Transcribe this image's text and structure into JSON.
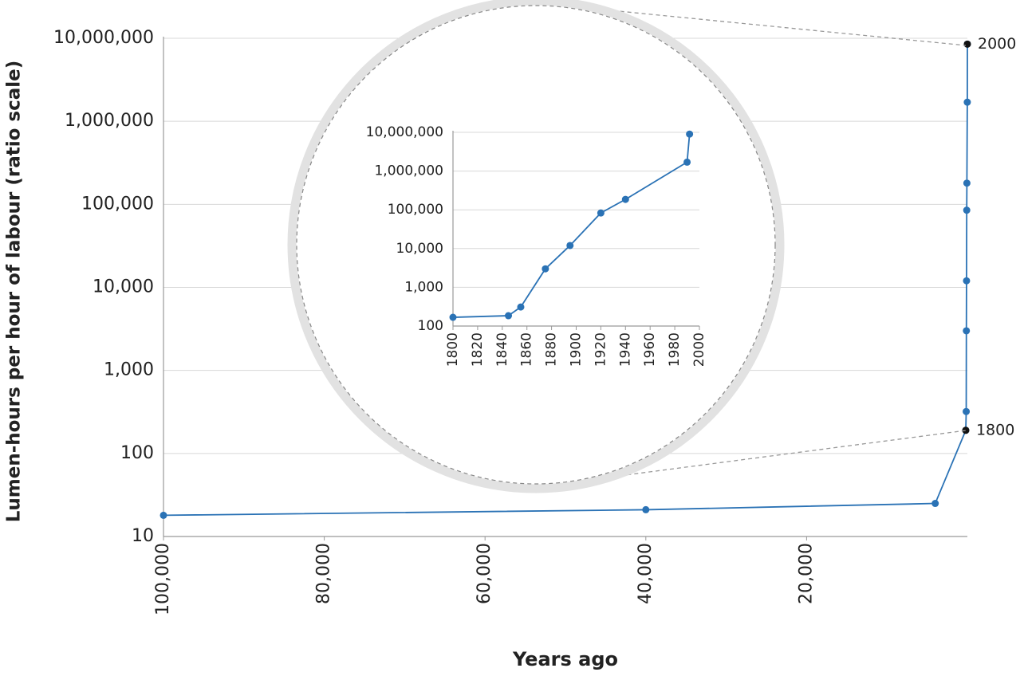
{
  "chart_data": [
    {
      "type": "line",
      "x_label": "Years ago",
      "y_label": "Lumen-hours per hour of labour (ratio scale)",
      "log_y": true,
      "grid": true,
      "xlim": [
        100000,
        0
      ],
      "xticks": [
        {
          "value": 100000,
          "label": "100,000"
        },
        {
          "value": 80000,
          "label": "80,000"
        },
        {
          "value": 60000,
          "label": "60,000"
        },
        {
          "value": 40000,
          "label": "40,000"
        },
        {
          "value": 20000,
          "label": "20,000"
        }
      ],
      "ylim": [
        10,
        10000000
      ],
      "yticks": [
        10,
        100,
        {
          "value": 1000,
          "label": "1,000"
        },
        {
          "value": 10000,
          "label": "10,000"
        },
        {
          "value": 100000,
          "label": "100,000"
        },
        {
          "value": 1000000,
          "label": "1,000,000"
        },
        {
          "value": 10000000,
          "label": "10,000,000"
        }
      ],
      "x": [
        100000,
        40000,
        4000,
        200,
        145,
        125,
        105,
        80,
        60,
        10,
        0
      ],
      "series": [
        {
          "name": "Lumen-hours",
          "color": "#2a72b5",
          "values": [
            18,
            21,
            25,
            190,
            320,
            3000,
            12000,
            85000,
            180000,
            1700000,
            8500000
          ]
        }
      ],
      "annotations": [
        {
          "text": "2000",
          "x": 0,
          "y": 8500000,
          "color": "#111111"
        },
        {
          "text": "1800",
          "x": 200,
          "y": 190,
          "color": "#111111"
        }
      ]
    },
    {
      "type": "line",
      "log_y": true,
      "grid": true,
      "xlim": [
        1800,
        2000
      ],
      "xticks": [
        1800,
        1820,
        1840,
        1860,
        1880,
        1900,
        1920,
        1940,
        1960,
        1980,
        2000
      ],
      "ylim": [
        100,
        10000000
      ],
      "yticks": [
        100,
        {
          "value": 1000,
          "label": "1,000"
        },
        {
          "value": 10000,
          "label": "10,000"
        },
        {
          "value": 100000,
          "label": "100,000"
        },
        {
          "value": 1000000,
          "label": "1,000,000"
        },
        {
          "value": 10000000,
          "label": "10,000,000"
        }
      ],
      "x": [
        1800,
        1845,
        1855,
        1875,
        1895,
        1920,
        1940,
        1990,
        1992
      ],
      "series": [
        {
          "name": "Lumen-hours",
          "color": "#2a72b5",
          "values": [
            168,
            185,
            310,
            3000,
            12000,
            83000,
            186000,
            1700000,
            9000000
          ]
        }
      ]
    }
  ]
}
